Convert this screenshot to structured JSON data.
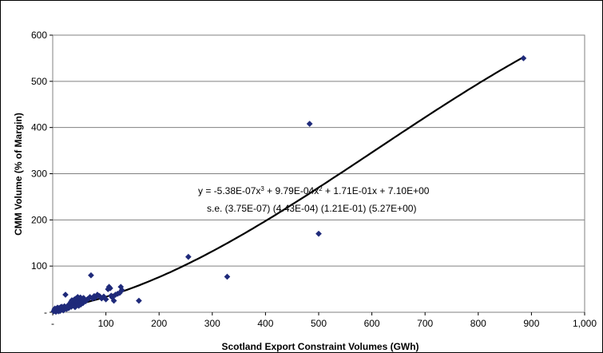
{
  "chart_data": {
    "type": "scatter",
    "xlabel": "Scotland Export Constraint Volumes (GWh)",
    "ylabel": "CMM Volume (% of Margin)",
    "xlim": [
      0,
      1000
    ],
    "ylim": [
      0,
      600
    ],
    "xticks": [
      "-",
      "100",
      "200",
      "300",
      "400",
      "500",
      "600",
      "700",
      "800",
      "900",
      "1,000"
    ],
    "yticks": [
      "-",
      "100",
      "200",
      "300",
      "400",
      "500",
      "600"
    ],
    "grid": "horizontal",
    "marker_color": "#1f2a7a",
    "line_color": "#000000",
    "points": [
      [
        2,
        2
      ],
      [
        3,
        5
      ],
      [
        4,
        8
      ],
      [
        5,
        3
      ],
      [
        6,
        1
      ],
      [
        7,
        6
      ],
      [
        8,
        4
      ],
      [
        9,
        10
      ],
      [
        10,
        7
      ],
      [
        11,
        2
      ],
      [
        12,
        9
      ],
      [
        13,
        5
      ],
      [
        14,
        3
      ],
      [
        15,
        11
      ],
      [
        16,
        6
      ],
      [
        17,
        12
      ],
      [
        18,
        8
      ],
      [
        20,
        4
      ],
      [
        22,
        13
      ],
      [
        24,
        38
      ],
      [
        25,
        10
      ],
      [
        26,
        7
      ],
      [
        28,
        14
      ],
      [
        30,
        9
      ],
      [
        32,
        18
      ],
      [
        34,
        22
      ],
      [
        35,
        12
      ],
      [
        36,
        26
      ],
      [
        38,
        15
      ],
      [
        40,
        20
      ],
      [
        41,
        28
      ],
      [
        42,
        11
      ],
      [
        43,
        24
      ],
      [
        44,
        30
      ],
      [
        45,
        16
      ],
      [
        46,
        22
      ],
      [
        47,
        33
      ],
      [
        48,
        19
      ],
      [
        49,
        14
      ],
      [
        50,
        27
      ],
      [
        51,
        21
      ],
      [
        52,
        32
      ],
      [
        53,
        17
      ],
      [
        54,
        25
      ],
      [
        55,
        29
      ],
      [
        56,
        23
      ],
      [
        57,
        20
      ],
      [
        58,
        31
      ],
      [
        60,
        26
      ],
      [
        62,
        24
      ],
      [
        65,
        28
      ],
      [
        68,
        30
      ],
      [
        70,
        33
      ],
      [
        72,
        80
      ],
      [
        75,
        30
      ],
      [
        78,
        35
      ],
      [
        80,
        32
      ],
      [
        84,
        38
      ],
      [
        88,
        35
      ],
      [
        92,
        30
      ],
      [
        96,
        34
      ],
      [
        100,
        28
      ],
      [
        104,
        50
      ],
      [
        106,
        55
      ],
      [
        108,
        52
      ],
      [
        110,
        36
      ],
      [
        112,
        32
      ],
      [
        115,
        25
      ],
      [
        118,
        38
      ],
      [
        122,
        40
      ],
      [
        126,
        42
      ],
      [
        128,
        55
      ],
      [
        130,
        48
      ],
      [
        162,
        25
      ],
      [
        255,
        120
      ],
      [
        328,
        77
      ],
      [
        483,
        408
      ],
      [
        500,
        170
      ],
      [
        885,
        550
      ]
    ],
    "fit": {
      "type": "cubic",
      "coefficients": [
        -5.38e-07,
        0.000979,
        0.171,
        7.1
      ],
      "x_range": [
        0,
        885
      ]
    },
    "annotation": {
      "line1_prefix": "y = -5.38E-07x",
      "sup1": "3",
      "line1_mid": " + 9.79E-04x",
      "sup2": "2",
      "line1_suffix": " + 1.71E-01x + 7.10E+00",
      "line2": "s.e. (3.75E-07)  (4.43E-04)  (1.21E-01)  (5.27E+00)"
    }
  }
}
